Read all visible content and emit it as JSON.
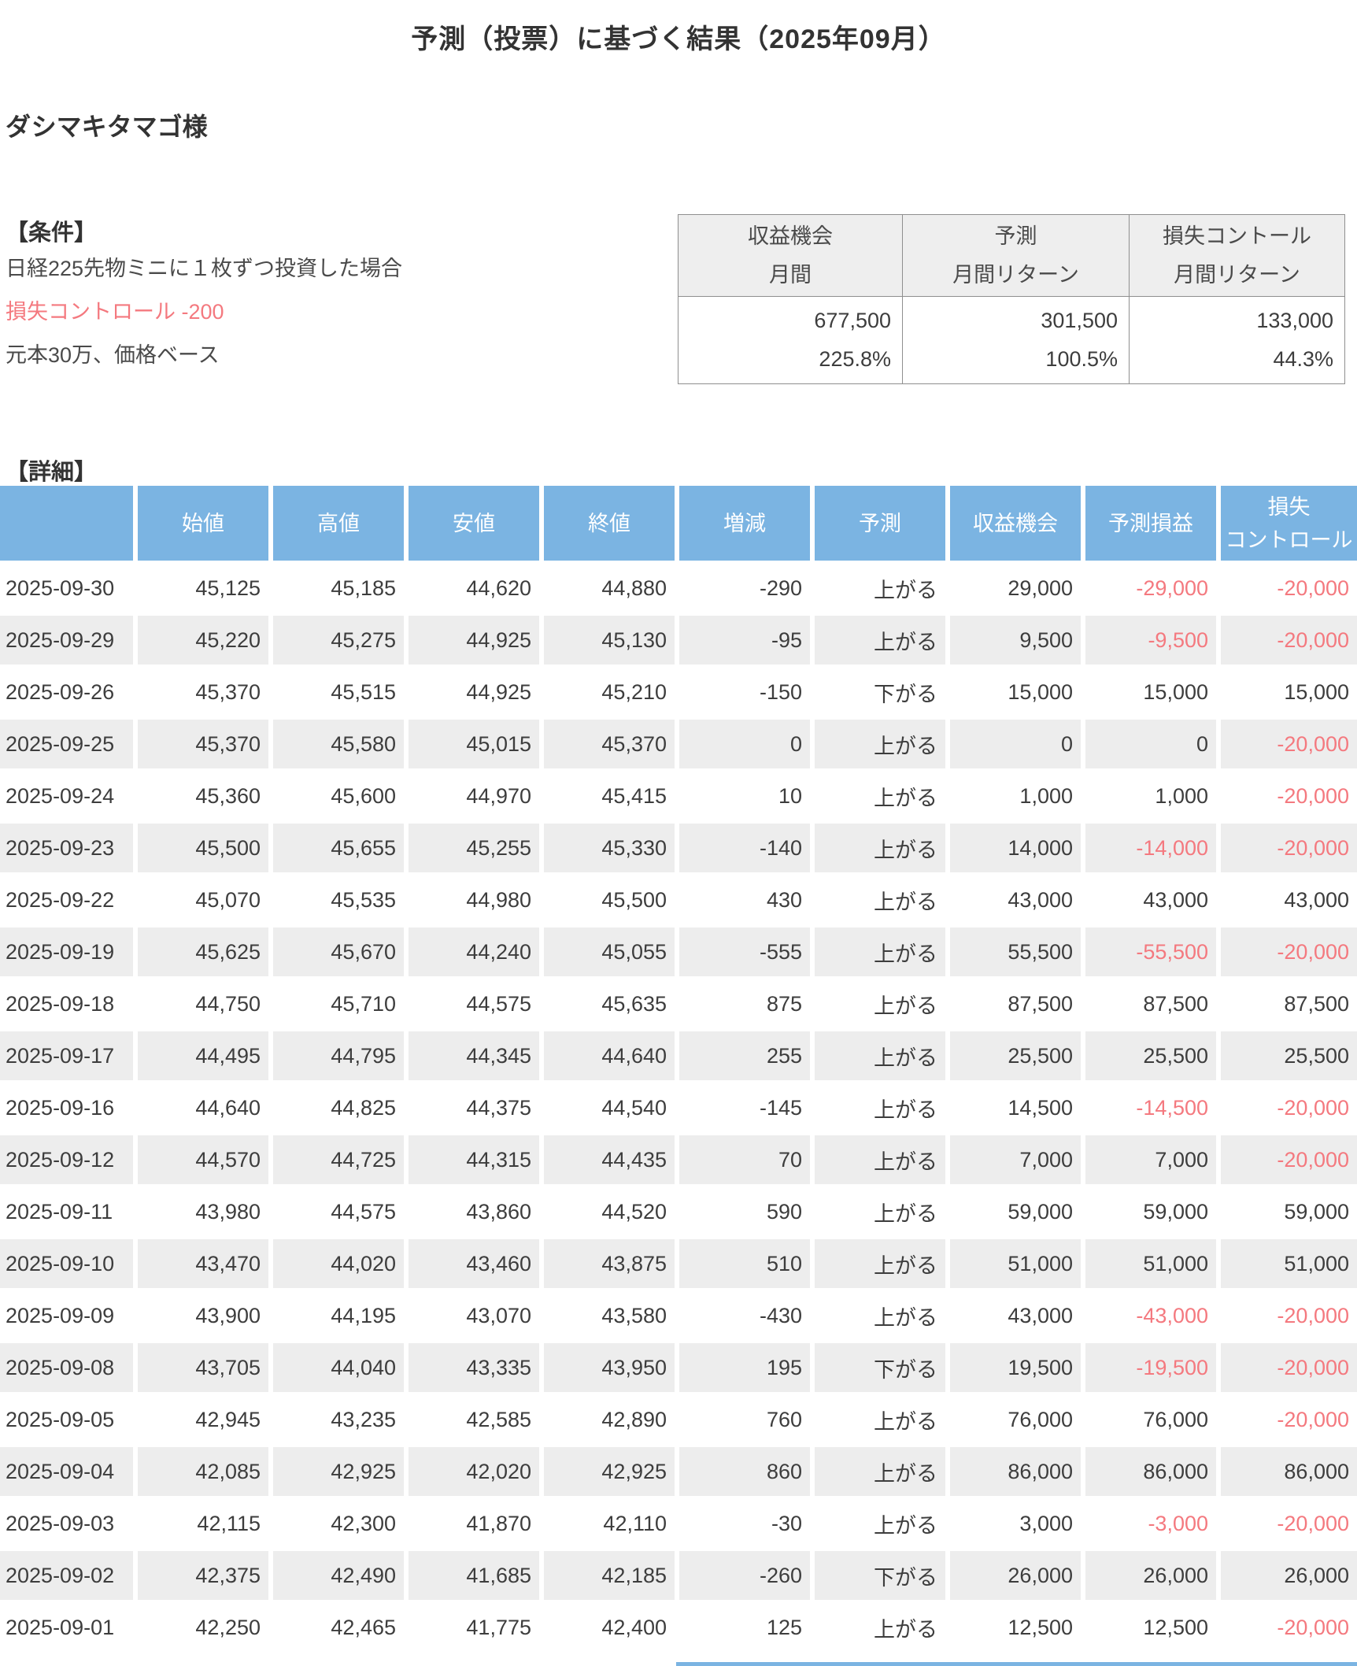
{
  "page": {
    "title": "予測（投票）に基づく結果（2025年09月）",
    "customer": "ダシマキタマゴ様"
  },
  "conditions": {
    "heading": "【条件】",
    "lines": [
      {
        "text": "日経225先物ミニに１枚ずつ投資した場合",
        "color": "default"
      },
      {
        "text": "損失コントロール -200",
        "color": "red"
      },
      {
        "text": "元本30万、価格ベース",
        "color": "default"
      }
    ]
  },
  "summary": {
    "columns": [
      {
        "header": [
          "収益機会",
          "月間"
        ],
        "value": "677,500",
        "percent": "225.8%"
      },
      {
        "header": [
          "予測",
          "月間リターン"
        ],
        "value": "301,500",
        "percent": "100.5%"
      },
      {
        "header": [
          "損失コントール",
          "月間リターン"
        ],
        "value": "133,000",
        "percent": "44.3%"
      }
    ]
  },
  "detail": {
    "heading": "【詳細】",
    "columns": [
      {
        "id": "date",
        "lines": [
          ""
        ]
      },
      {
        "id": "open",
        "lines": [
          "始値"
        ]
      },
      {
        "id": "high",
        "lines": [
          "高値"
        ]
      },
      {
        "id": "low",
        "lines": [
          "安値"
        ]
      },
      {
        "id": "close",
        "lines": [
          "終値"
        ]
      },
      {
        "id": "change",
        "lines": [
          "増減"
        ]
      },
      {
        "id": "forecast",
        "lines": [
          "予測"
        ]
      },
      {
        "id": "opportunity",
        "lines": [
          "収益機会"
        ]
      },
      {
        "id": "forecast-pl",
        "lines": [
          "予測損益"
        ]
      },
      {
        "id": "loss-control",
        "lines": [
          "損失",
          "コントロール"
        ]
      }
    ],
    "rows": [
      [
        "2025-09-30",
        "45,125",
        "45,185",
        "44,620",
        "44,880",
        "-290",
        "上がる",
        "29,000",
        "-29,000",
        "-20,000"
      ],
      [
        "2025-09-29",
        "45,220",
        "45,275",
        "44,925",
        "45,130",
        "-95",
        "上がる",
        "9,500",
        "-9,500",
        "-20,000"
      ],
      [
        "2025-09-26",
        "45,370",
        "45,515",
        "44,925",
        "45,210",
        "-150",
        "下がる",
        "15,000",
        "15,000",
        "15,000"
      ],
      [
        "2025-09-25",
        "45,370",
        "45,580",
        "45,015",
        "45,370",
        "0",
        "上がる",
        "0",
        "0",
        "-20,000"
      ],
      [
        "2025-09-24",
        "45,360",
        "45,600",
        "44,970",
        "45,415",
        "10",
        "上がる",
        "1,000",
        "1,000",
        "-20,000"
      ],
      [
        "2025-09-23",
        "45,500",
        "45,655",
        "45,255",
        "45,330",
        "-140",
        "上がる",
        "14,000",
        "-14,000",
        "-20,000"
      ],
      [
        "2025-09-22",
        "45,070",
        "45,535",
        "44,980",
        "45,500",
        "430",
        "上がる",
        "43,000",
        "43,000",
        "43,000"
      ],
      [
        "2025-09-19",
        "45,625",
        "45,670",
        "44,240",
        "45,055",
        "-555",
        "上がる",
        "55,500",
        "-55,500",
        "-20,000"
      ],
      [
        "2025-09-18",
        "44,750",
        "45,710",
        "44,575",
        "45,635",
        "875",
        "上がる",
        "87,500",
        "87,500",
        "87,500"
      ],
      [
        "2025-09-17",
        "44,495",
        "44,795",
        "44,345",
        "44,640",
        "255",
        "上がる",
        "25,500",
        "25,500",
        "25,500"
      ],
      [
        "2025-09-16",
        "44,640",
        "44,825",
        "44,375",
        "44,540",
        "-145",
        "上がる",
        "14,500",
        "-14,500",
        "-20,000"
      ],
      [
        "2025-09-12",
        "44,570",
        "44,725",
        "44,315",
        "44,435",
        "70",
        "上がる",
        "7,000",
        "7,000",
        "-20,000"
      ],
      [
        "2025-09-11",
        "43,980",
        "44,575",
        "43,860",
        "44,520",
        "590",
        "上がる",
        "59,000",
        "59,000",
        "59,000"
      ],
      [
        "2025-09-10",
        "43,470",
        "44,020",
        "43,460",
        "43,875",
        "510",
        "上がる",
        "51,000",
        "51,000",
        "51,000"
      ],
      [
        "2025-09-09",
        "43,900",
        "44,195",
        "43,070",
        "43,580",
        "-430",
        "上がる",
        "43,000",
        "-43,000",
        "-20,000"
      ],
      [
        "2025-09-08",
        "43,705",
        "44,040",
        "43,335",
        "43,950",
        "195",
        "下がる",
        "19,500",
        "-19,500",
        "-20,000"
      ],
      [
        "2025-09-05",
        "42,945",
        "43,235",
        "42,585",
        "42,890",
        "760",
        "上がる",
        "76,000",
        "76,000",
        "-20,000"
      ],
      [
        "2025-09-04",
        "42,085",
        "42,925",
        "42,020",
        "42,925",
        "860",
        "上がる",
        "86,000",
        "86,000",
        "86,000"
      ],
      [
        "2025-09-03",
        "42,115",
        "42,300",
        "41,870",
        "42,110",
        "-30",
        "上がる",
        "3,000",
        "-3,000",
        "-20,000"
      ],
      [
        "2025-09-02",
        "42,375",
        "42,490",
        "41,685",
        "42,185",
        "-260",
        "下がる",
        "26,000",
        "26,000",
        "26,000"
      ],
      [
        "2025-09-01",
        "42,250",
        "42,465",
        "41,775",
        "42,400",
        "125",
        "上がる",
        "12,500",
        "12,500",
        "-20,000"
      ]
    ]
  },
  "colors": {
    "accent_blue": "#7bb4e2",
    "stripe_gray": "#ededed",
    "negative_red": "#f4797f",
    "text_dark": "#3d3d3d"
  }
}
